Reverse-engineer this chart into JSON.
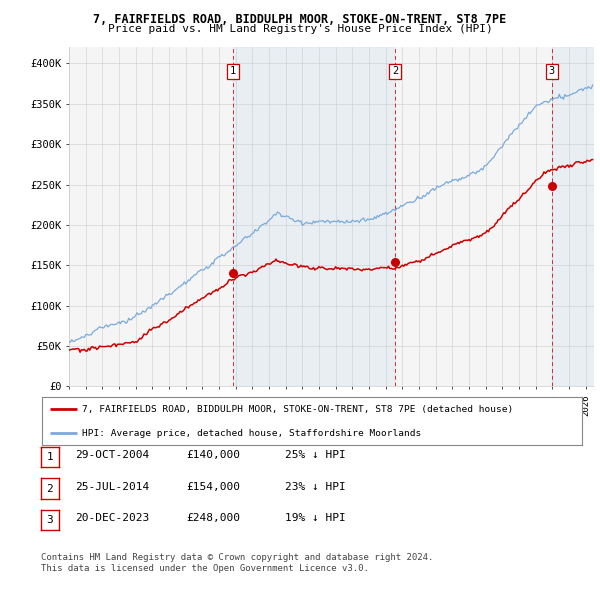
{
  "title1": "7, FAIRFIELDS ROAD, BIDDULPH MOOR, STOKE-ON-TRENT, ST8 7PE",
  "title2": "Price paid vs. HM Land Registry's House Price Index (HPI)",
  "xlim_start": 1995.0,
  "xlim_end": 2026.5,
  "ylim": [
    0,
    420000
  ],
  "yticks": [
    0,
    50000,
    100000,
    150000,
    200000,
    250000,
    300000,
    350000,
    400000
  ],
  "ytick_labels": [
    "£0",
    "£50K",
    "£100K",
    "£150K",
    "£200K",
    "£250K",
    "£300K",
    "£350K",
    "£400K"
  ],
  "sale_dates": [
    2004.83,
    2014.56,
    2023.97
  ],
  "sale_prices": [
    140000,
    154000,
    248000
  ],
  "sale_labels": [
    "1",
    "2",
    "3"
  ],
  "vline_color": "#cc0000",
  "shade_color": "#ddeeff",
  "hpi_line_color": "#7aaadd",
  "price_line_color": "#cc0000",
  "legend_entry1": "7, FAIRFIELDS ROAD, BIDDULPH MOOR, STOKE-ON-TRENT, ST8 7PE (detached house)",
  "legend_entry2": "HPI: Average price, detached house, Staffordshire Moorlands",
  "table_rows": [
    [
      "1",
      "29-OCT-2004",
      "£140,000",
      "25% ↓ HPI"
    ],
    [
      "2",
      "25-JUL-2014",
      "£154,000",
      "23% ↓ HPI"
    ],
    [
      "3",
      "20-DEC-2023",
      "£248,000",
      "19% ↓ HPI"
    ]
  ],
  "footnote1": "Contains HM Land Registry data © Crown copyright and database right 2024.",
  "footnote2": "This data is licensed under the Open Government Licence v3.0.",
  "background_color": "#ffffff",
  "plot_bg_color": "#f5f5f5"
}
